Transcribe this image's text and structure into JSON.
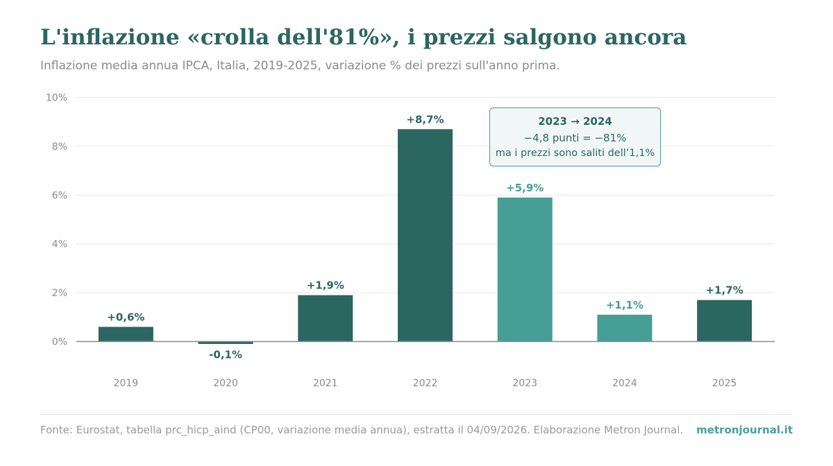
{
  "title": "L'inflazione «crolla dell'81%», i prezzi salgono ancora",
  "subtitle": "Inflazione media annua IPCA, Italia, 2019-2025, variazione % dei prezzi sull'anno prima.",
  "footer": {
    "source": "Fonte: Eurostat, tabella prc_hicp_aind (CP00, variazione media annua), estratta il 04/09/2026. Elaborazione Metron Journal.",
    "brand": "metronjournal.it"
  },
  "colors": {
    "dark": "#2c6660",
    "highlight": "#469e97",
    "grid": "#e6e6e6",
    "axis": "#888888",
    "tick_text": "#8a8a8a"
  },
  "chart_data": {
    "type": "bar",
    "categories": [
      "2019",
      "2020",
      "2021",
      "2022",
      "2023",
      "2024",
      "2025"
    ],
    "values": [
      0.6,
      -0.1,
      1.9,
      8.7,
      5.9,
      1.1,
      1.7
    ],
    "value_labels": [
      "+0,6%",
      "-0,1%",
      "+1,9%",
      "+8,7%",
      "+5,9%",
      "+1,1%",
      "+1,7%"
    ],
    "highlighted": [
      false,
      false,
      false,
      false,
      true,
      true,
      false
    ],
    "ylim": [
      0,
      10
    ],
    "yticks": [
      0,
      2,
      4,
      6,
      8,
      10
    ],
    "ytick_labels": [
      "0%",
      "2%",
      "4%",
      "6%",
      "8%",
      "10%"
    ],
    "grid": true,
    "annotation": {
      "title": "2023 → 2024",
      "line1": "−4,8 punti = −81%",
      "line2": "ma i prezzi sono saliti dell’1,1%"
    }
  }
}
